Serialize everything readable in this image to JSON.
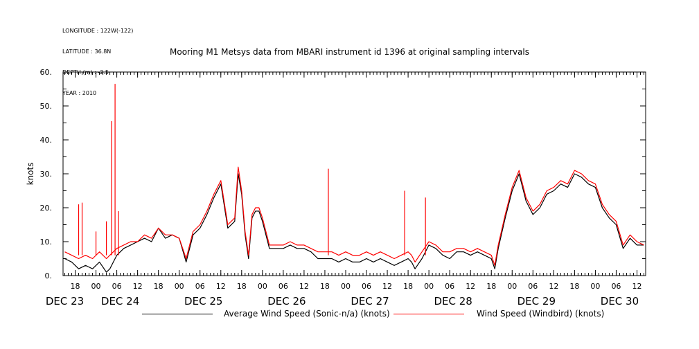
{
  "header": {
    "meta_lines": [
      "LONGITUDE : 122W(-122)",
      "LATITUDE : 36.8N",
      "DEPTH (m) : -2.5",
      "YEAR : 2010"
    ],
    "title": "Mooring M1 Metsys data from MBARI instrument id 1396 at original sampling intervals"
  },
  "chart_data": {
    "type": "line",
    "title": "Mooring M1 Metsys data from MBARI instrument id 1396 at original sampling intervals",
    "xlabel": "",
    "ylabel": "knots",
    "x_units": "hours since Dec 23 2010 00:00",
    "xlim": [
      14.5,
      182.5
    ],
    "ylim": [
      0,
      60
    ],
    "yticks": [
      0,
      10,
      20,
      30,
      40,
      50,
      60
    ],
    "ytick_labels": [
      "0.",
      "10.",
      "20.",
      "30.",
      "40.",
      "50.",
      "60."
    ],
    "x_hour_ticks": [
      {
        "t": 18,
        "label": "18"
      },
      {
        "t": 24,
        "label": "00"
      },
      {
        "t": 30,
        "label": "06"
      },
      {
        "t": 36,
        "label": "12"
      },
      {
        "t": 42,
        "label": "18"
      },
      {
        "t": 48,
        "label": "00"
      },
      {
        "t": 54,
        "label": "06"
      },
      {
        "t": 60,
        "label": "12"
      },
      {
        "t": 66,
        "label": "18"
      },
      {
        "t": 72,
        "label": "00"
      },
      {
        "t": 78,
        "label": "06"
      },
      {
        "t": 84,
        "label": "12"
      },
      {
        "t": 90,
        "label": "18"
      },
      {
        "t": 96,
        "label": "00"
      },
      {
        "t": 102,
        "label": "06"
      },
      {
        "t": 108,
        "label": "12"
      },
      {
        "t": 114,
        "label": "18"
      },
      {
        "t": 120,
        "label": "00"
      },
      {
        "t": 126,
        "label": "06"
      },
      {
        "t": 132,
        "label": "12"
      },
      {
        "t": 138,
        "label": "18"
      },
      {
        "t": 144,
        "label": "00"
      },
      {
        "t": 150,
        "label": "06"
      },
      {
        "t": 156,
        "label": "12"
      },
      {
        "t": 162,
        "label": "18"
      },
      {
        "t": 168,
        "label": "00"
      },
      {
        "t": 174,
        "label": "06"
      },
      {
        "t": 180,
        "label": "12"
      }
    ],
    "date_labels": [
      {
        "t": 15,
        "label": "DEC 23"
      },
      {
        "t": 31,
        "label": "DEC 24"
      },
      {
        "t": 55,
        "label": "DEC 25"
      },
      {
        "t": 79,
        "label": "DEC 26"
      },
      {
        "t": 103,
        "label": "DEC 27"
      },
      {
        "t": 127,
        "label": "DEC 28"
      },
      {
        "t": 151,
        "label": "DEC 29"
      },
      {
        "t": 175,
        "label": "DEC 30"
      }
    ],
    "series": [
      {
        "name": "Average Wind Speed (Sonic-n/a) (knots)",
        "color": "#000000",
        "x": [
          15,
          17,
          19,
          21,
          23,
          25,
          27,
          28,
          30,
          32,
          34,
          36,
          38,
          40,
          42,
          44,
          46,
          48,
          50,
          52,
          54,
          56,
          58,
          60,
          62,
          64,
          65,
          66,
          67,
          68,
          69,
          70,
          71,
          72,
          74,
          76,
          78,
          80,
          82,
          84,
          86,
          88,
          90,
          92,
          94,
          96,
          98,
          100,
          102,
          104,
          106,
          108,
          110,
          112,
          114,
          115,
          116,
          118,
          120,
          122,
          124,
          126,
          128,
          130,
          132,
          134,
          136,
          138,
          139,
          140,
          142,
          144,
          146,
          148,
          150,
          152,
          154,
          156,
          158,
          160,
          162,
          164,
          166,
          168,
          170,
          172,
          174,
          176,
          178,
          180,
          182
        ],
        "y": [
          5,
          4,
          2,
          3,
          2,
          4,
          1,
          2,
          6,
          8,
          9,
          10,
          11,
          10,
          14,
          11,
          12,
          11,
          4,
          12,
          14,
          18,
          23,
          27,
          14,
          16,
          30,
          24,
          12,
          5,
          17,
          19,
          19,
          16,
          8,
          8,
          8,
          9,
          8,
          8,
          7,
          5,
          5,
          5,
          4,
          5,
          4,
          4,
          5,
          4,
          5,
          4,
          3,
          4,
          5,
          4,
          2,
          5,
          9,
          8,
          6,
          5,
          7,
          7,
          6,
          7,
          6,
          5,
          2,
          8,
          17,
          25,
          30,
          22,
          18,
          20,
          24,
          25,
          27,
          26,
          30,
          29,
          27,
          26,
          20,
          17,
          15,
          8,
          11,
          9,
          9
        ]
      },
      {
        "name": "Wind Speed (Windbird) (knots)",
        "color": "#ff0000",
        "x": [
          15,
          17,
          19,
          21,
          23,
          25,
          27,
          28,
          30,
          32,
          34,
          36,
          38,
          40,
          42,
          44,
          46,
          48,
          50,
          52,
          54,
          56,
          58,
          60,
          62,
          64,
          65,
          66,
          67,
          68,
          69,
          70,
          71,
          72,
          74,
          76,
          78,
          80,
          82,
          84,
          86,
          88,
          90,
          92,
          94,
          96,
          98,
          100,
          102,
          104,
          106,
          108,
          110,
          112,
          114,
          115,
          116,
          118,
          120,
          122,
          124,
          126,
          128,
          130,
          132,
          134,
          136,
          138,
          139,
          140,
          142,
          144,
          146,
          148,
          150,
          152,
          154,
          156,
          158,
          160,
          162,
          164,
          166,
          168,
          170,
          172,
          174,
          176,
          178,
          180,
          182
        ],
        "y": [
          7,
          6,
          5,
          6,
          5,
          7,
          5,
          6,
          8,
          9,
          10,
          10,
          12,
          11,
          14,
          12,
          12,
          11,
          5,
          13,
          15,
          19,
          24,
          28,
          15,
          17,
          32,
          25,
          13,
          6,
          18,
          20,
          20,
          17,
          9,
          9,
          9,
          10,
          9,
          9,
          8,
          7,
          7,
          7,
          6,
          7,
          6,
          6,
          7,
          6,
          7,
          6,
          5,
          6,
          7,
          6,
          4,
          7,
          10,
          9,
          7,
          7,
          8,
          8,
          7,
          8,
          7,
          6,
          3,
          9,
          18,
          26,
          31,
          23,
          19,
          21,
          25,
          26,
          28,
          27,
          31,
          30,
          28,
          27,
          21,
          18,
          16,
          9,
          12,
          10,
          9
        ],
        "spikes": [
          {
            "x": 19,
            "y": 21
          },
          {
            "x": 20,
            "y": 21.5
          },
          {
            "x": 24,
            "y": 13
          },
          {
            "x": 27,
            "y": 16
          },
          {
            "x": 28.5,
            "y": 45.5
          },
          {
            "x": 29.5,
            "y": 56.5
          },
          {
            "x": 30.5,
            "y": 19
          },
          {
            "x": 91,
            "y": 31.5
          },
          {
            "x": 113,
            "y": 25
          },
          {
            "x": 119,
            "y": 23
          }
        ]
      }
    ],
    "grid": false,
    "legend_position": "bottom"
  }
}
